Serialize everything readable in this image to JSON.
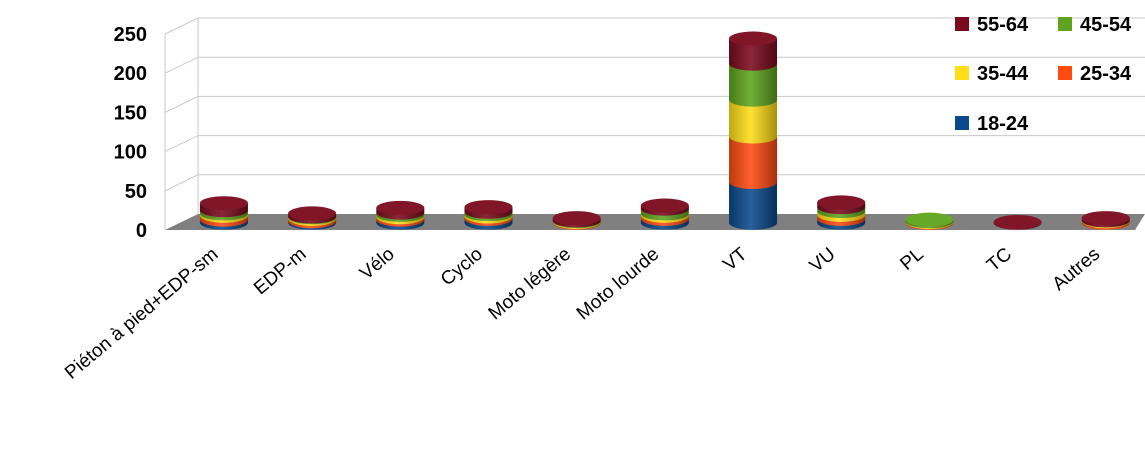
{
  "chart_data": {
    "type": "bar",
    "stacked": true,
    "style": "3d-cylinder",
    "categories": [
      "Piéton à pied+EDP-sm",
      "EDP-m",
      "Vélo",
      "Cyclo",
      "Moto légère",
      "Moto lourde",
      "VT",
      "VU",
      "PL",
      "TC",
      "Autres"
    ],
    "series": [
      {
        "name": "18-24",
        "color": "#0a4a8c",
        "values": [
          4,
          2,
          4,
          5,
          0,
          5,
          52,
          5,
          0,
          0,
          0
        ]
      },
      {
        "name": "25-34",
        "color": "#ff4a12",
        "values": [
          5,
          3,
          3,
          3,
          1,
          4,
          58,
          5,
          1,
          0,
          2
        ]
      },
      {
        "name": "35-44",
        "color": "#ffde17",
        "values": [
          3,
          2,
          3,
          3,
          1,
          3,
          47,
          5,
          1,
          0,
          1
        ]
      },
      {
        "name": "45-54",
        "color": "#5ea41e",
        "values": [
          4,
          1,
          3,
          3,
          1,
          6,
          46,
          5,
          2,
          0,
          0
        ]
      },
      {
        "name": "55-64",
        "color": "#7b0a1e",
        "values": [
          9,
          4,
          6,
          6,
          3,
          4,
          32,
          6,
          0,
          1,
          3
        ]
      }
    ],
    "legend_order": [
      "55-64",
      "45-54",
      "35-44",
      "25-34",
      "18-24"
    ],
    "yticks": [
      0,
      50,
      100,
      150,
      200,
      250
    ],
    "ylim": [
      0,
      250
    ],
    "grid": true,
    "legend_position": "top-right",
    "floor_color": "#808080"
  }
}
